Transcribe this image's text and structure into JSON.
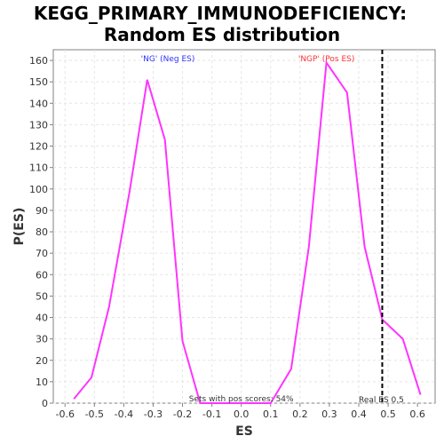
{
  "chart_data": {
    "type": "line",
    "title": "KEGG_PRIMARY_IMMUNODEFICIENCY:",
    "subtitle": "Random ES distribution",
    "xlabel": "ES",
    "ylabel": "P(ES)",
    "xlim": [
      -0.64,
      0.66
    ],
    "ylim": [
      0,
      165
    ],
    "xticks": [
      -0.6,
      -0.5,
      -0.4,
      -0.3,
      -0.2,
      -0.1,
      0.0,
      0.1,
      0.2,
      0.3,
      0.4,
      0.5,
      0.6
    ],
    "xtick_labels": [
      "-0.6",
      "-0.5",
      "-0.4",
      "-0.3",
      "-0.2",
      "-0.1",
      "0.0",
      "0.1",
      "0.2",
      "0.3",
      "0.4",
      "0.5",
      "0.6"
    ],
    "yticks": [
      0,
      10,
      20,
      30,
      40,
      50,
      60,
      70,
      80,
      90,
      100,
      110,
      120,
      130,
      140,
      150,
      160
    ],
    "grid": true,
    "series": [
      {
        "color": "#ff33ff",
        "x": [
          -0.57,
          -0.51,
          -0.45,
          -0.38,
          -0.32,
          -0.26,
          -0.2,
          -0.14,
          -0.08,
          -0.02,
          0.04,
          0.1,
          0.17,
          0.23,
          0.29,
          0.36,
          0.42,
          0.48,
          0.55,
          0.61
        ],
        "y": [
          2,
          12,
          45,
          99,
          151,
          123,
          29,
          0,
          0,
          0,
          0,
          0,
          16,
          73,
          159,
          145,
          73,
          39,
          30,
          4
        ]
      }
    ],
    "real_es": 0.48,
    "annotations": {
      "neg_label": "'NG' (Neg ES)",
      "neg_color": "#3333ff",
      "pos_label": "'NGP' (Pos ES)",
      "pos_color": "#ff3333",
      "pos_scores": "Sets with pos scores: 54%",
      "real_es_label": "Real ES 0.5"
    }
  }
}
